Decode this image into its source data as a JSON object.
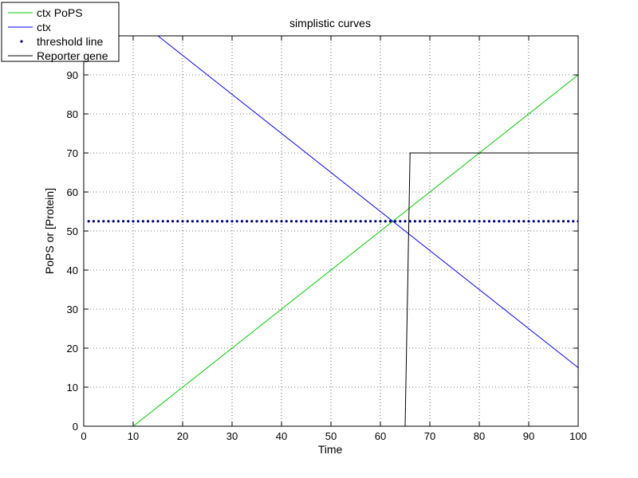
{
  "chart_data": {
    "type": "line",
    "title": "simplistic curves",
    "xlabel": "Time",
    "ylabel": "PoPS or [Protein]",
    "xlim": [
      0,
      100
    ],
    "ylim": [
      0,
      100
    ],
    "x_ticks": [
      0,
      10,
      20,
      30,
      40,
      50,
      60,
      70,
      80,
      90,
      100
    ],
    "y_ticks": [
      0,
      10,
      20,
      30,
      40,
      50,
      60,
      70,
      80,
      90
    ],
    "grid": true,
    "legend_position": "top-left",
    "series": [
      {
        "name": "ctx PoPS",
        "style": "line",
        "color": "#00cc00",
        "points": [
          [
            10,
            0
          ],
          [
            100,
            90
          ]
        ]
      },
      {
        "name": "ctx",
        "style": "line",
        "color": "#0000ff",
        "points": [
          [
            15,
            100
          ],
          [
            100,
            15
          ]
        ]
      },
      {
        "name": "threshold line",
        "style": "dots",
        "color": "#000080",
        "y": 52.5,
        "x_range": [
          1,
          100
        ],
        "x_step": 1
      },
      {
        "name": "Reporter gene",
        "style": "line",
        "color": "#000000",
        "points": [
          [
            65,
            0
          ],
          [
            66,
            70
          ],
          [
            100,
            70
          ]
        ]
      }
    ]
  }
}
